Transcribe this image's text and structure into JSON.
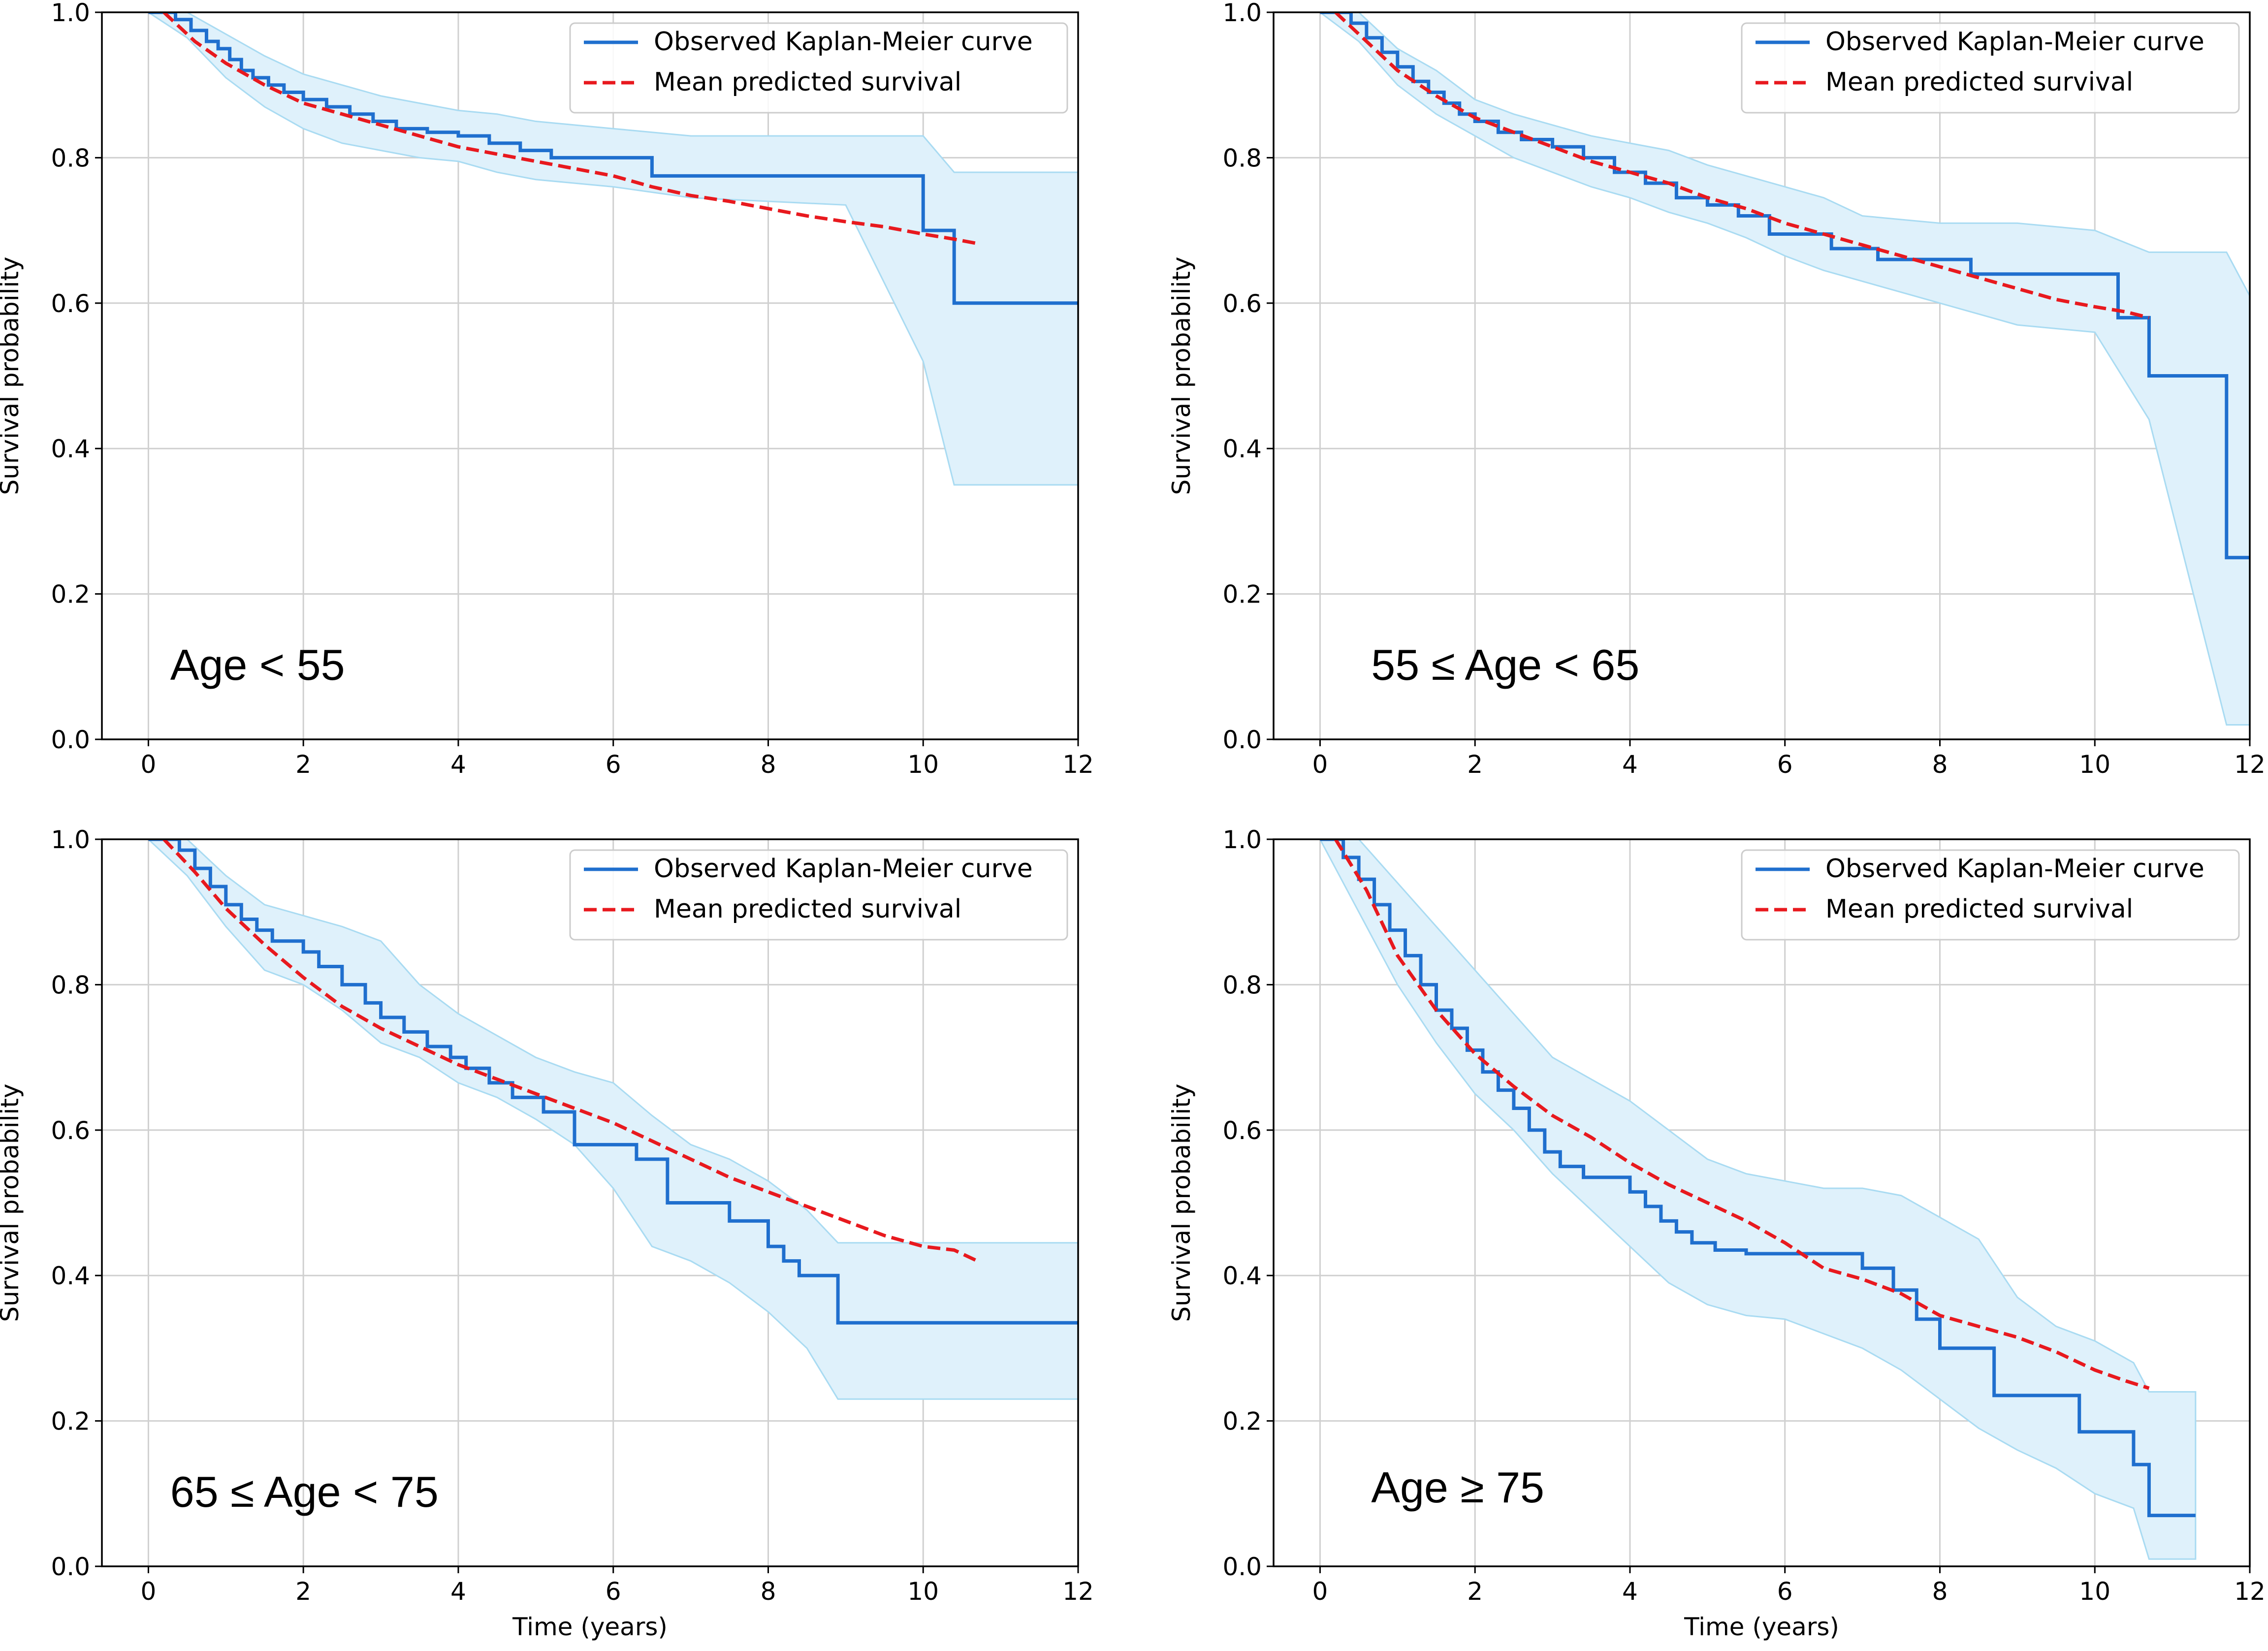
{
  "chart_data": [
    {
      "type": "line",
      "panel_label": "Age < 55",
      "xlabel": "",
      "ylabel": "Survival probability",
      "xlim": [
        -0.6,
        12
      ],
      "ylim": [
        0,
        1
      ],
      "xticks": [
        0,
        2,
        4,
        6,
        8,
        10,
        12
      ],
      "yticks": [
        0.0,
        0.2,
        0.4,
        0.6,
        0.8,
        1.0
      ],
      "grid": true,
      "legend_position": "top-right",
      "series": [
        {
          "name": "Observed Kaplan-Meier curve",
          "style": "step",
          "color": "#1f6fce",
          "x": [
            0,
            0.35,
            0.55,
            0.75,
            0.9,
            1.05,
            1.2,
            1.35,
            1.55,
            1.75,
            2.0,
            2.3,
            2.6,
            2.9,
            3.2,
            3.6,
            4.0,
            4.4,
            4.8,
            5.2,
            6.5,
            10.0,
            10.4,
            12.0
          ],
          "y": [
            1.0,
            0.99,
            0.975,
            0.96,
            0.95,
            0.935,
            0.92,
            0.91,
            0.9,
            0.89,
            0.88,
            0.87,
            0.86,
            0.85,
            0.84,
            0.835,
            0.83,
            0.82,
            0.81,
            0.8,
            0.775,
            0.7,
            0.6,
            0.6
          ]
        },
        {
          "name": "Mean predicted survival",
          "style": "dashed",
          "color": "#e8191e",
          "x": [
            0.2,
            0.6,
            1.0,
            1.5,
            2.0,
            2.5,
            3.0,
            3.5,
            4.0,
            4.5,
            5.0,
            5.5,
            6.0,
            6.5,
            7.0,
            7.5,
            8.0,
            8.5,
            9.0,
            9.5,
            10.0,
            10.4,
            10.7
          ],
          "y": [
            1.0,
            0.96,
            0.93,
            0.9,
            0.875,
            0.86,
            0.845,
            0.83,
            0.815,
            0.805,
            0.795,
            0.785,
            0.775,
            0.76,
            0.748,
            0.74,
            0.73,
            0.72,
            0.712,
            0.705,
            0.695,
            0.688,
            0.682
          ]
        }
      ],
      "ci_band": {
        "x": [
          0,
          0.5,
          1.0,
          1.5,
          2.0,
          2.5,
          3.0,
          3.5,
          4.0,
          4.5,
          5.0,
          6.0,
          7.0,
          8.0,
          9.0,
          10.0,
          10.4,
          12.0
        ],
        "lower": [
          1.0,
          0.965,
          0.91,
          0.87,
          0.84,
          0.82,
          0.81,
          0.8,
          0.795,
          0.78,
          0.77,
          0.76,
          0.745,
          0.74,
          0.735,
          0.52,
          0.35,
          0.35
        ],
        "upper": [
          1.0,
          1.0,
          0.97,
          0.94,
          0.915,
          0.9,
          0.885,
          0.875,
          0.865,
          0.86,
          0.85,
          0.84,
          0.83,
          0.83,
          0.83,
          0.83,
          0.78,
          0.78
        ]
      }
    },
    {
      "type": "line",
      "panel_label": "55 ≤ Age < 65",
      "xlabel": "",
      "ylabel": "Survival probability",
      "xlim": [
        -0.6,
        12
      ],
      "ylim": [
        0,
        1
      ],
      "xticks": [
        0,
        2,
        4,
        6,
        8,
        10,
        12
      ],
      "yticks": [
        0.0,
        0.2,
        0.4,
        0.6,
        0.8,
        1.0
      ],
      "grid": true,
      "legend_position": "top-right",
      "series": [
        {
          "name": "Observed Kaplan-Meier curve",
          "style": "step",
          "color": "#1f6fce",
          "x": [
            0,
            0.4,
            0.6,
            0.8,
            1.0,
            1.2,
            1.4,
            1.6,
            1.8,
            2.0,
            2.3,
            2.6,
            3.0,
            3.4,
            3.8,
            4.2,
            4.6,
            5.0,
            5.4,
            5.8,
            6.6,
            7.2,
            8.4,
            10.3,
            10.7,
            11.7,
            12.0
          ],
          "y": [
            1.0,
            0.985,
            0.965,
            0.945,
            0.925,
            0.905,
            0.89,
            0.875,
            0.86,
            0.85,
            0.835,
            0.825,
            0.815,
            0.8,
            0.78,
            0.765,
            0.745,
            0.735,
            0.72,
            0.695,
            0.675,
            0.66,
            0.64,
            0.58,
            0.5,
            0.25,
            0.25
          ]
        },
        {
          "name": "Mean predicted survival",
          "style": "dashed",
          "color": "#e8191e",
          "x": [
            0.2,
            0.6,
            1.0,
            1.5,
            2.0,
            2.5,
            3.0,
            3.5,
            4.0,
            4.5,
            5.0,
            5.5,
            6.0,
            6.5,
            7.0,
            7.5,
            8.0,
            8.5,
            9.0,
            9.5,
            10.0,
            10.4,
            10.7
          ],
          "y": [
            1.0,
            0.96,
            0.92,
            0.885,
            0.855,
            0.835,
            0.815,
            0.795,
            0.78,
            0.765,
            0.745,
            0.73,
            0.71,
            0.695,
            0.68,
            0.665,
            0.65,
            0.635,
            0.62,
            0.605,
            0.595,
            0.588,
            0.58
          ]
        }
      ],
      "ci_band": {
        "x": [
          0,
          0.5,
          1.0,
          1.5,
          2.0,
          2.5,
          3.0,
          3.5,
          4.0,
          4.5,
          5.0,
          5.5,
          6.0,
          6.5,
          7.0,
          8.0,
          9.0,
          10.0,
          10.7,
          11.7,
          12.0
        ],
        "lower": [
          1.0,
          0.96,
          0.9,
          0.86,
          0.83,
          0.8,
          0.78,
          0.76,
          0.745,
          0.725,
          0.71,
          0.69,
          0.665,
          0.645,
          0.63,
          0.6,
          0.57,
          0.56,
          0.44,
          0.02,
          0.02
        ],
        "upper": [
          1.0,
          1.0,
          0.95,
          0.92,
          0.88,
          0.86,
          0.845,
          0.83,
          0.82,
          0.81,
          0.79,
          0.775,
          0.76,
          0.745,
          0.72,
          0.71,
          0.71,
          0.7,
          0.67,
          0.67,
          0.61
        ]
      }
    },
    {
      "type": "line",
      "panel_label": "65 ≤ Age < 75",
      "xlabel": "Time (years)",
      "ylabel": "Survival probability",
      "xlim": [
        -0.6,
        12
      ],
      "ylim": [
        0,
        1
      ],
      "xticks": [
        0,
        2,
        4,
        6,
        8,
        10,
        12
      ],
      "yticks": [
        0.0,
        0.2,
        0.4,
        0.6,
        0.8,
        1.0
      ],
      "grid": true,
      "legend_position": "top-right",
      "series": [
        {
          "name": "Observed Kaplan-Meier curve",
          "style": "step",
          "color": "#1f6fce",
          "x": [
            0,
            0.4,
            0.6,
            0.8,
            1.0,
            1.2,
            1.4,
            1.6,
            2.0,
            2.2,
            2.5,
            2.8,
            3.0,
            3.3,
            3.6,
            3.9,
            4.1,
            4.4,
            4.7,
            5.1,
            5.5,
            6.3,
            6.7,
            7.5,
            8.0,
            8.2,
            8.4,
            8.9,
            12.0
          ],
          "y": [
            1.0,
            0.985,
            0.96,
            0.935,
            0.91,
            0.89,
            0.875,
            0.86,
            0.845,
            0.825,
            0.8,
            0.775,
            0.755,
            0.735,
            0.715,
            0.7,
            0.685,
            0.665,
            0.645,
            0.625,
            0.58,
            0.56,
            0.5,
            0.475,
            0.44,
            0.42,
            0.4,
            0.335,
            0.335
          ]
        },
        {
          "name": "Mean predicted survival",
          "style": "dashed",
          "color": "#e8191e",
          "x": [
            0.2,
            0.6,
            1.0,
            1.5,
            2.0,
            2.5,
            3.0,
            3.5,
            4.0,
            4.5,
            5.0,
            5.5,
            6.0,
            6.5,
            7.0,
            7.5,
            8.0,
            8.5,
            9.0,
            9.5,
            10.0,
            10.4,
            10.7
          ],
          "y": [
            1.0,
            0.955,
            0.905,
            0.855,
            0.81,
            0.77,
            0.74,
            0.715,
            0.69,
            0.67,
            0.65,
            0.63,
            0.61,
            0.585,
            0.56,
            0.535,
            0.515,
            0.495,
            0.475,
            0.455,
            0.44,
            0.435,
            0.42
          ]
        }
      ],
      "ci_band": {
        "x": [
          0,
          0.5,
          1.0,
          1.5,
          2.0,
          2.5,
          3.0,
          3.5,
          4.0,
          4.5,
          5.0,
          5.5,
          6.0,
          6.5,
          7.0,
          7.5,
          8.0,
          8.5,
          8.9,
          12.0
        ],
        "lower": [
          1.0,
          0.95,
          0.88,
          0.82,
          0.8,
          0.765,
          0.72,
          0.7,
          0.665,
          0.645,
          0.615,
          0.58,
          0.52,
          0.44,
          0.42,
          0.39,
          0.35,
          0.3,
          0.23,
          0.23
        ],
        "upper": [
          1.0,
          1.0,
          0.95,
          0.91,
          0.895,
          0.88,
          0.86,
          0.8,
          0.76,
          0.73,
          0.7,
          0.68,
          0.665,
          0.62,
          0.58,
          0.56,
          0.53,
          0.49,
          0.445,
          0.445
        ]
      }
    },
    {
      "type": "line",
      "panel_label": "Age ≥ 75",
      "xlabel": "Time (years)",
      "ylabel": "Survival probability",
      "xlim": [
        -0.6,
        12
      ],
      "ylim": [
        0,
        1
      ],
      "xticks": [
        0,
        2,
        4,
        6,
        8,
        10,
        12
      ],
      "yticks": [
        0.0,
        0.2,
        0.4,
        0.6,
        0.8,
        1.0
      ],
      "grid": true,
      "legend_position": "top-right",
      "series": [
        {
          "name": "Observed Kaplan-Meier curve",
          "style": "step",
          "color": "#1f6fce",
          "x": [
            0,
            0.3,
            0.5,
            0.7,
            0.9,
            1.1,
            1.3,
            1.5,
            1.7,
            1.9,
            2.1,
            2.3,
            2.5,
            2.7,
            2.9,
            3.1,
            3.4,
            4.0,
            4.2,
            4.4,
            4.6,
            4.8,
            5.1,
            5.5,
            7.0,
            7.4,
            7.7,
            8.0,
            8.7,
            9.8,
            10.5,
            10.7,
            11.3
          ],
          "y": [
            1.0,
            0.975,
            0.945,
            0.91,
            0.875,
            0.84,
            0.8,
            0.765,
            0.74,
            0.71,
            0.68,
            0.655,
            0.63,
            0.6,
            0.57,
            0.55,
            0.535,
            0.515,
            0.495,
            0.475,
            0.46,
            0.445,
            0.435,
            0.43,
            0.41,
            0.38,
            0.34,
            0.3,
            0.235,
            0.185,
            0.14,
            0.07,
            0.07
          ]
        },
        {
          "name": "Mean predicted survival",
          "style": "dashed",
          "color": "#e8191e",
          "x": [
            0.2,
            0.6,
            1.0,
            1.5,
            2.0,
            2.5,
            3.0,
            3.5,
            4.0,
            4.5,
            5.0,
            5.5,
            6.0,
            6.5,
            7.0,
            7.5,
            8.0,
            8.5,
            9.0,
            9.5,
            10.0,
            10.4,
            10.7
          ],
          "y": [
            1.0,
            0.93,
            0.84,
            0.765,
            0.705,
            0.66,
            0.62,
            0.59,
            0.555,
            0.525,
            0.5,
            0.475,
            0.445,
            0.41,
            0.395,
            0.375,
            0.345,
            0.33,
            0.315,
            0.295,
            0.27,
            0.255,
            0.245
          ]
        }
      ],
      "ci_band": {
        "x": [
          0,
          0.5,
          1.0,
          1.5,
          2.0,
          2.5,
          3.0,
          3.5,
          4.0,
          4.5,
          5.0,
          5.5,
          6.0,
          6.5,
          7.0,
          7.5,
          8.0,
          8.5,
          9.0,
          9.5,
          10.0,
          10.5,
          10.7,
          11.3
        ],
        "lower": [
          1.0,
          0.9,
          0.8,
          0.72,
          0.65,
          0.6,
          0.54,
          0.49,
          0.44,
          0.39,
          0.36,
          0.345,
          0.34,
          0.32,
          0.3,
          0.27,
          0.23,
          0.19,
          0.16,
          0.135,
          0.1,
          0.08,
          0.01,
          0.01
        ],
        "upper": [
          1.0,
          1.0,
          0.94,
          0.88,
          0.82,
          0.76,
          0.7,
          0.67,
          0.64,
          0.6,
          0.56,
          0.54,
          0.53,
          0.52,
          0.52,
          0.51,
          0.48,
          0.45,
          0.37,
          0.33,
          0.31,
          0.28,
          0.24,
          0.24
        ]
      }
    }
  ]
}
